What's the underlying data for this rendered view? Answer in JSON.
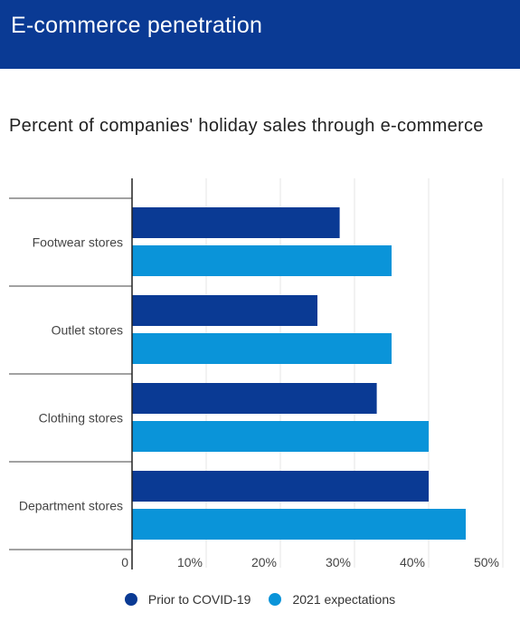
{
  "header": {
    "title": "E-commerce penetration"
  },
  "chart_data": {
    "type": "bar",
    "orientation": "horizontal",
    "title": "Percent of companies' holiday sales through e-commerce",
    "categories": [
      "Footwear stores",
      "Outlet stores",
      "Clothing stores",
      "Department stores"
    ],
    "series": [
      {
        "name": "Prior to COVID-19",
        "color": "#0a3a94",
        "values": [
          28,
          25,
          33,
          40
        ]
      },
      {
        "name": "2021 expectations",
        "color": "#0a94d9",
        "values": [
          35,
          35,
          40,
          45
        ]
      }
    ],
    "xlim": [
      0,
      50
    ],
    "ticks": [
      {
        "value": 0,
        "label": "0"
      },
      {
        "value": 10,
        "label": "10%"
      },
      {
        "value": 20,
        "label": "20%"
      },
      {
        "value": 30,
        "label": "30%"
      },
      {
        "value": 40,
        "label": "40%"
      },
      {
        "value": 50,
        "label": "50%"
      }
    ],
    "grid": true,
    "legend_position": "bottom"
  }
}
